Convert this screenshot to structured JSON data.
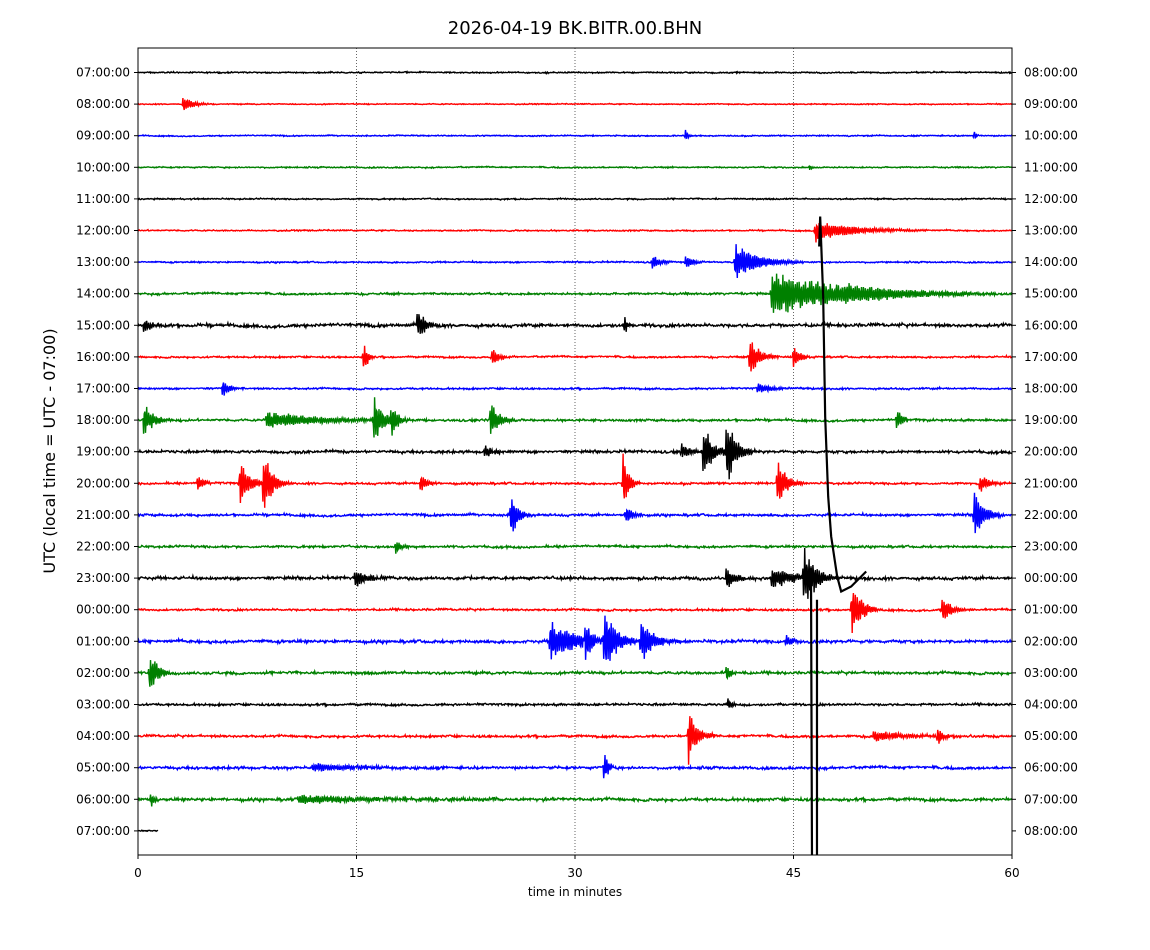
{
  "chart_data": {
    "type": "line",
    "title": "2026-04-19 BK.BITR.00.BHN",
    "xlabel": "time in minutes",
    "ylabel": "UTC (local time = UTC - 07:00)",
    "xlim": [
      0,
      60
    ],
    "x_ticks": [
      0,
      15,
      30,
      45,
      60
    ],
    "grid": "vertical dotted lines at 15, 30, 45",
    "colors": [
      "#000000",
      "#ff0000",
      "#0000ff",
      "#008000"
    ],
    "left_labels": [
      "07:00:00",
      "08:00:00",
      "09:00:00",
      "10:00:00",
      "11:00:00",
      "12:00:00",
      "13:00:00",
      "14:00:00",
      "15:00:00",
      "16:00:00",
      "17:00:00",
      "18:00:00",
      "19:00:00",
      "20:00:00",
      "21:00:00",
      "22:00:00",
      "23:00:00",
      "00:00:00",
      "01:00:00",
      "02:00:00",
      "03:00:00",
      "04:00:00",
      "05:00:00",
      "06:00:00",
      "07:00:00"
    ],
    "right_labels": [
      "08:00:00",
      "09:00:00",
      "10:00:00",
      "11:00:00",
      "12:00:00",
      "13:00:00",
      "14:00:00",
      "15:00:00",
      "16:00:00",
      "17:00:00",
      "18:00:00",
      "19:00:00",
      "20:00:00",
      "21:00:00",
      "22:00:00",
      "23:00:00",
      "00:00:00",
      "01:00:00",
      "02:00:00",
      "03:00:00",
      "04:00:00",
      "05:00:00",
      "06:00:00",
      "07:00:00",
      "08:00:00"
    ],
    "traces": [
      {
        "noise": 0.9,
        "events": []
      },
      {
        "noise": 0.7,
        "events": [
          {
            "t": 3.1,
            "amp": 9,
            "dur": 0.6
          }
        ]
      },
      {
        "noise": 0.8,
        "events": [
          {
            "t": 37.6,
            "amp": 8,
            "dur": 0.1
          },
          {
            "t": 57.4,
            "amp": 6,
            "dur": 0.1
          }
        ]
      },
      {
        "noise": 0.9,
        "events": [
          {
            "t": 46.1,
            "amp": 3,
            "dur": 0.2
          }
        ]
      },
      {
        "noise": 0.9,
        "events": []
      },
      {
        "noise": 0.9,
        "events": [
          {
            "t": 46.5,
            "amp": 12,
            "dur": 2.5
          }
        ]
      },
      {
        "noise": 1.0,
        "events": [
          {
            "t": 35.3,
            "amp": 8,
            "dur": 0.5
          },
          {
            "t": 37.6,
            "amp": 9,
            "dur": 0.4
          },
          {
            "t": 41.0,
            "amp": 20,
            "dur": 1.5
          }
        ]
      },
      {
        "noise": 1.4,
        "events": [
          {
            "t": 43.5,
            "amp": 24,
            "dur": 5.0
          },
          {
            "t": 48.5,
            "amp": 6,
            "dur": 3.0
          }
        ]
      },
      {
        "noise": 2.2,
        "events": [
          {
            "t": 0.4,
            "amp": 8,
            "dur": 0.6
          },
          {
            "t": 19.2,
            "amp": 18,
            "dur": 0.5
          },
          {
            "t": 33.4,
            "amp": 14,
            "dur": 0.1
          }
        ]
      },
      {
        "noise": 1.2,
        "events": [
          {
            "t": 15.5,
            "amp": 18,
            "dur": 0.2
          },
          {
            "t": 24.3,
            "amp": 10,
            "dur": 0.4
          },
          {
            "t": 42.0,
            "amp": 22,
            "dur": 0.6
          },
          {
            "t": 45.0,
            "amp": 14,
            "dur": 0.4
          }
        ]
      },
      {
        "noise": 1.2,
        "events": [
          {
            "t": 5.8,
            "amp": 10,
            "dur": 0.5
          },
          {
            "t": 42.5,
            "amp": 6,
            "dur": 1.0
          }
        ]
      },
      {
        "noise": 1.5,
        "events": [
          {
            "t": 0.4,
            "amp": 18,
            "dur": 0.6
          },
          {
            "t": 8.8,
            "amp": 9,
            "dur": 4.0
          },
          {
            "t": 16.2,
            "amp": 28,
            "dur": 0.5
          },
          {
            "t": 17.4,
            "amp": 20,
            "dur": 0.4
          },
          {
            "t": 24.2,
            "amp": 22,
            "dur": 0.5
          },
          {
            "t": 52.1,
            "amp": 14,
            "dur": 0.3
          }
        ]
      },
      {
        "noise": 1.8,
        "events": [
          {
            "t": 23.8,
            "amp": 8,
            "dur": 0.5
          },
          {
            "t": 37.3,
            "amp": 10,
            "dur": 0.6
          },
          {
            "t": 38.8,
            "amp": 32,
            "dur": 0.6
          },
          {
            "t": 40.4,
            "amp": 38,
            "dur": 0.6
          }
        ]
      },
      {
        "noise": 1.4,
        "events": [
          {
            "t": 4.1,
            "amp": 8,
            "dur": 0.4
          },
          {
            "t": 7.0,
            "amp": 26,
            "dur": 0.6
          },
          {
            "t": 8.6,
            "amp": 38,
            "dur": 0.5
          },
          {
            "t": 19.4,
            "amp": 10,
            "dur": 0.4
          },
          {
            "t": 33.3,
            "amp": 34,
            "dur": 0.3
          },
          {
            "t": 43.9,
            "amp": 28,
            "dur": 0.5
          },
          {
            "t": 57.8,
            "amp": 10,
            "dur": 0.6
          }
        ]
      },
      {
        "noise": 1.6,
        "events": [
          {
            "t": 25.6,
            "amp": 26,
            "dur": 0.4
          },
          {
            "t": 33.5,
            "amp": 10,
            "dur": 0.4
          },
          {
            "t": 57.4,
            "amp": 30,
            "dur": 0.6
          }
        ]
      },
      {
        "noise": 1.5,
        "events": [
          {
            "t": 17.7,
            "amp": 8,
            "dur": 0.4
          }
        ]
      },
      {
        "noise": 2.0,
        "events": [
          {
            "t": 14.9,
            "amp": 12,
            "dur": 0.8
          },
          {
            "t": 40.4,
            "amp": 12,
            "dur": 0.6
          },
          {
            "t": 43.5,
            "amp": 12,
            "dur": 1.5
          },
          {
            "t": 45.7,
            "amp": 34,
            "dur": 0.8
          }
        ]
      },
      {
        "noise": 1.4,
        "events": [
          {
            "t": 49.0,
            "amp": 30,
            "dur": 0.6
          },
          {
            "t": 55.2,
            "amp": 14,
            "dur": 0.6
          }
        ]
      },
      {
        "noise": 2.0,
        "events": [
          {
            "t": 28.3,
            "amp": 22,
            "dur": 2.0
          },
          {
            "t": 30.7,
            "amp": 30,
            "dur": 0.5
          },
          {
            "t": 32.0,
            "amp": 40,
            "dur": 0.8
          },
          {
            "t": 34.5,
            "amp": 26,
            "dur": 0.8
          },
          {
            "t": 44.5,
            "amp": 8,
            "dur": 0.4
          }
        ]
      },
      {
        "noise": 1.8,
        "events": [
          {
            "t": 0.8,
            "amp": 26,
            "dur": 0.5
          },
          {
            "t": 40.4,
            "amp": 8,
            "dur": 0.3
          }
        ]
      },
      {
        "noise": 1.5,
        "events": [
          {
            "t": 40.5,
            "amp": 6,
            "dur": 0.3
          }
        ]
      },
      {
        "noise": 1.6,
        "events": [
          {
            "t": 37.8,
            "amp": 30,
            "dur": 0.5
          },
          {
            "t": 50.5,
            "amp": 6,
            "dur": 2.5
          },
          {
            "t": 54.9,
            "amp": 10,
            "dur": 0.4
          }
        ]
      },
      {
        "noise": 1.8,
        "events": [
          {
            "t": 12.0,
            "amp": 5,
            "dur": 3.0
          },
          {
            "t": 32.0,
            "amp": 20,
            "dur": 0.2
          }
        ]
      },
      {
        "noise": 2.0,
        "events": [
          {
            "t": 11.0,
            "amp": 5,
            "dur": 6.0
          },
          {
            "t": 0.9,
            "amp": 10,
            "dur": 0.2
          }
        ]
      },
      {
        "noise": 0.8,
        "events": [],
        "end_t": 1.4
      }
    ],
    "big_event": {
      "t": 46.9,
      "start_trace": 5,
      "color": "#000000"
    }
  }
}
